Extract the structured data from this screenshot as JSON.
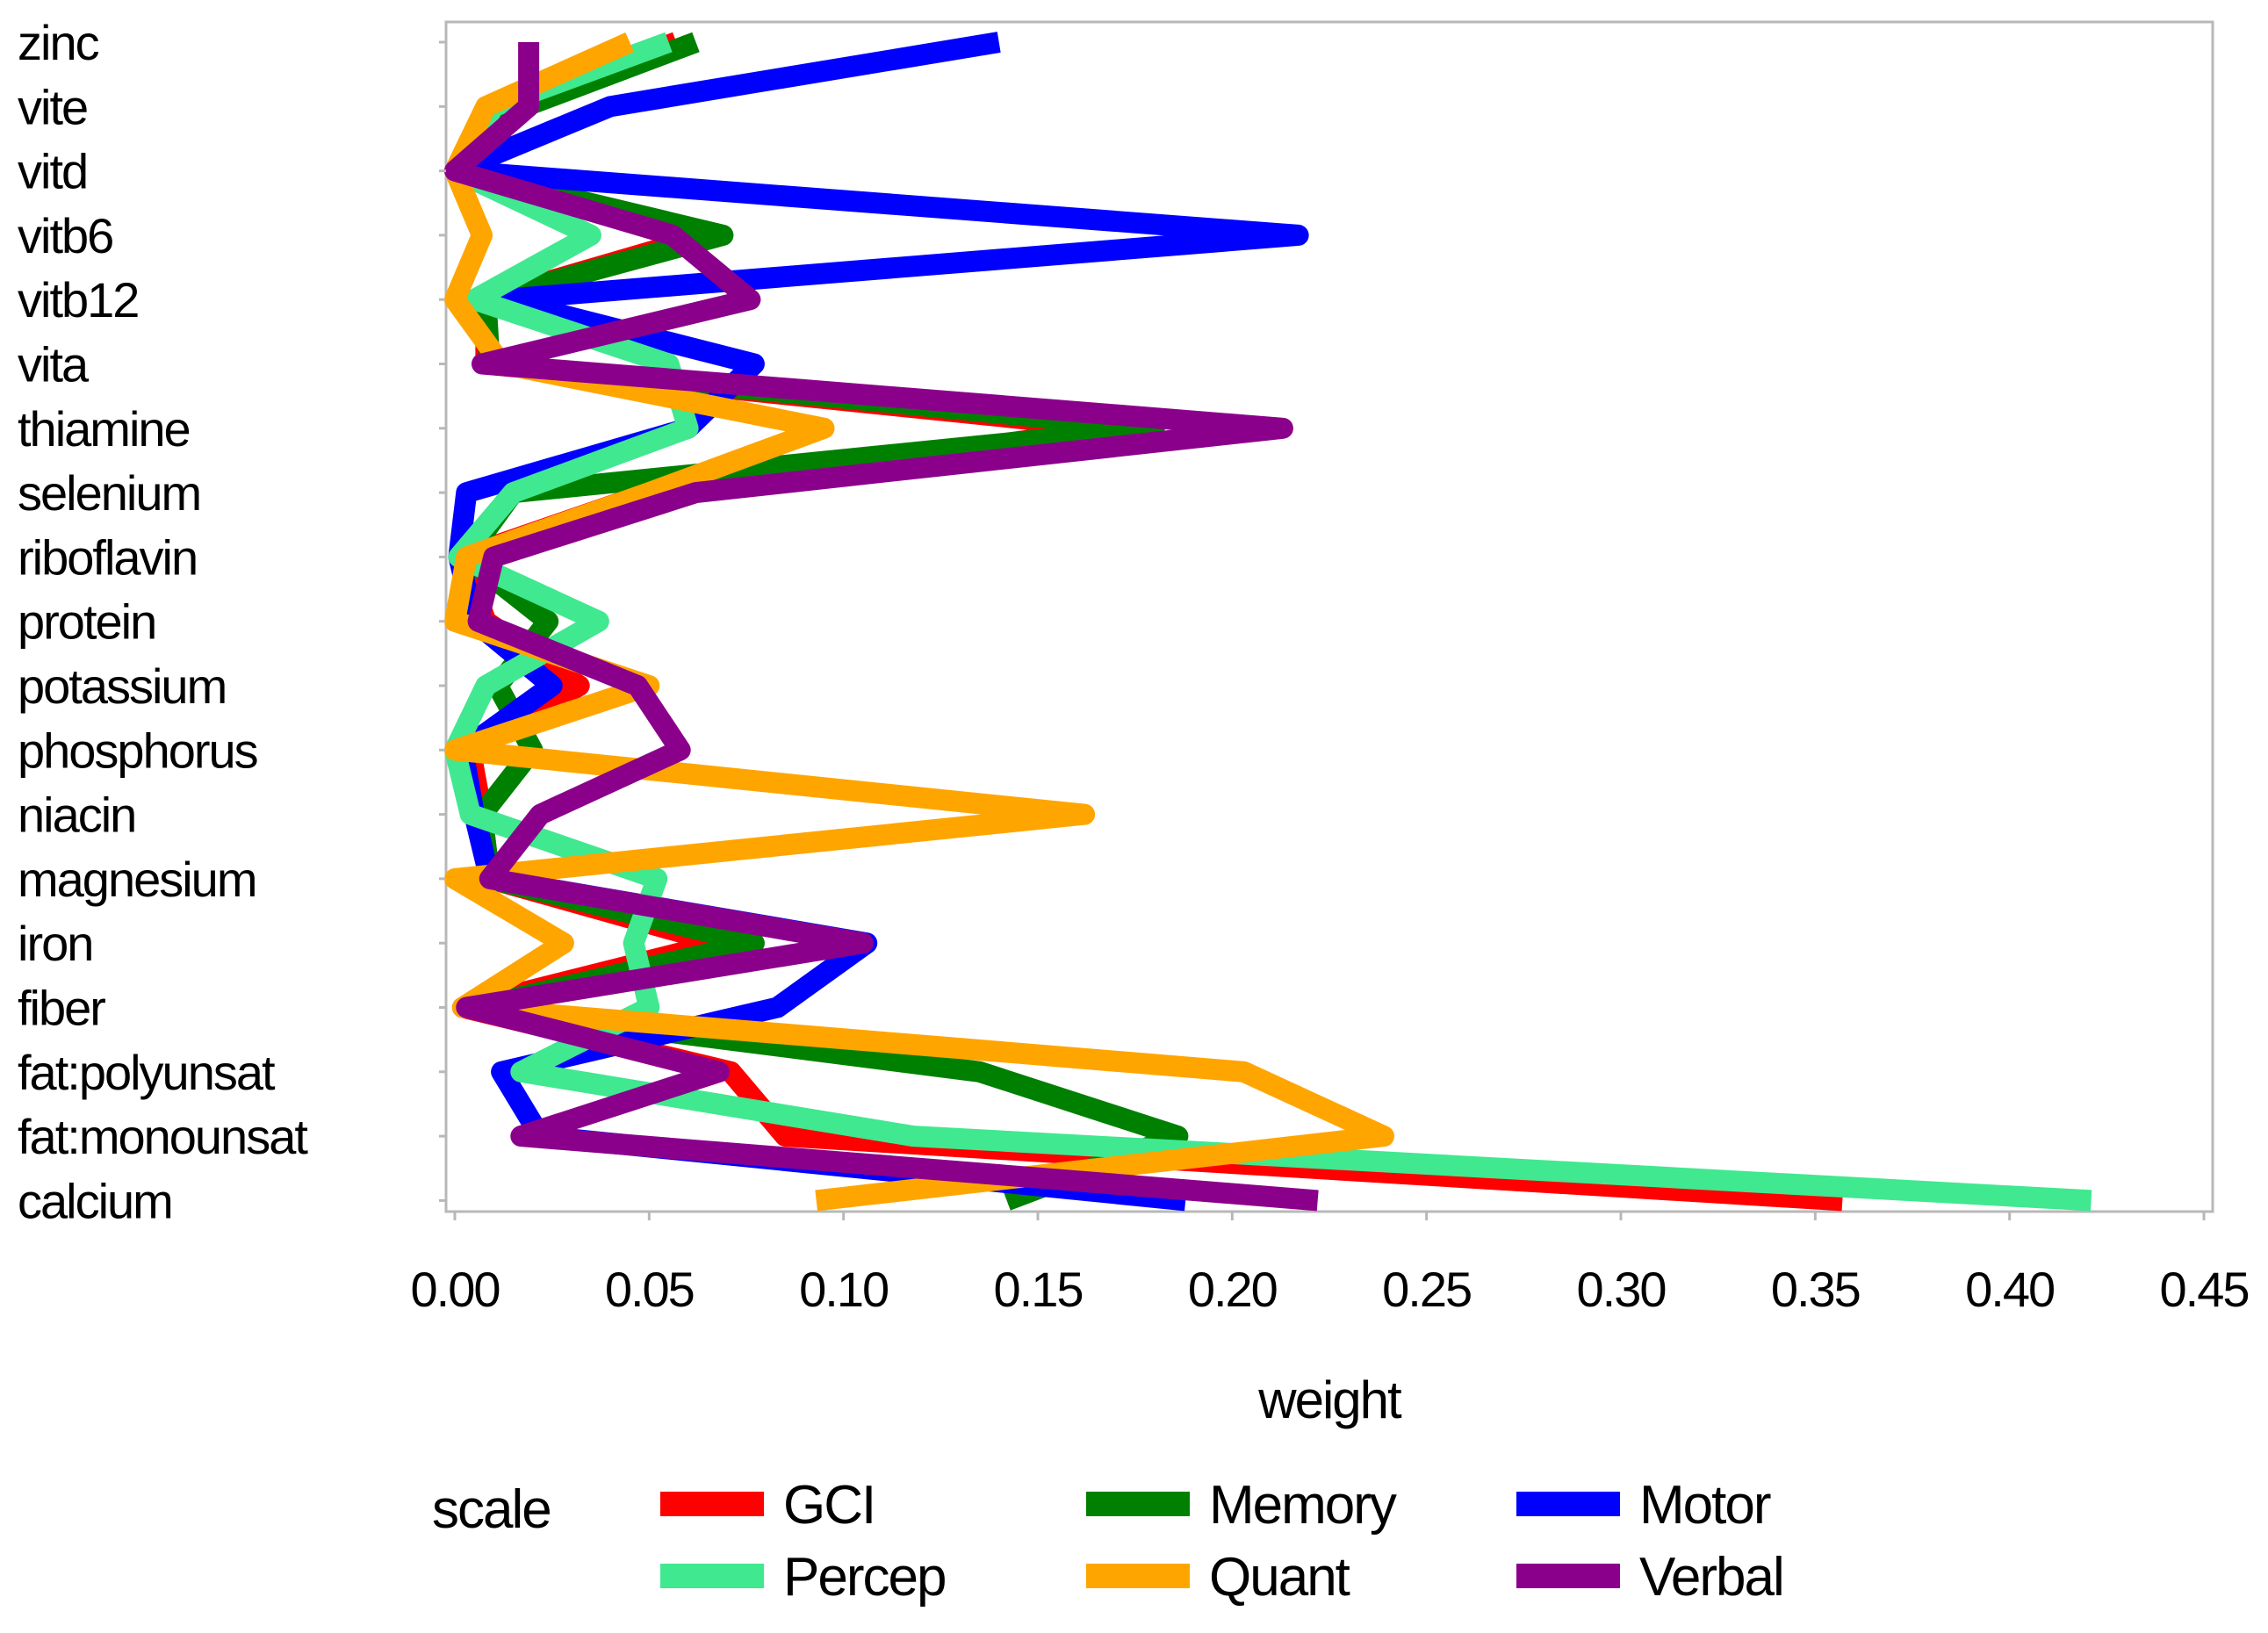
{
  "chart_data": {
    "type": "line",
    "orientation": "horizontal",
    "xlabel": "weight",
    "ylabel": "",
    "xlim": [
      0,
      0.45
    ],
    "xticks": [
      "0.00",
      "0.05",
      "0.10",
      "0.15",
      "0.20",
      "0.25",
      "0.30",
      "0.35",
      "0.40",
      "0.45"
    ],
    "xtick_values": [
      0,
      0.05,
      0.1,
      0.15,
      0.2,
      0.25,
      0.3,
      0.35,
      0.4,
      0.45
    ],
    "categories": [
      "zinc",
      "vite",
      "vitd",
      "vitb6",
      "vitb12",
      "vita",
      "thiamine",
      "selenium",
      "riboflavin",
      "protein",
      "potassium",
      "phosphorus",
      "niacin",
      "magnesium",
      "iron",
      "fiber",
      "fat:polyunsat",
      "fat:monounsat",
      "calcium"
    ],
    "grid": false,
    "legend": {
      "title": "scale",
      "placement": "bottom"
    },
    "series": [
      {
        "name": "GCI",
        "color": "#ff0000",
        "values": [
          0.057,
          0.013,
          0.0,
          0.065,
          0.008,
          0.008,
          0.17,
          0.05,
          0.002,
          0.008,
          0.032,
          0.004,
          0.007,
          0.009,
          0.068,
          0.002,
          0.071,
          0.085,
          0.357
        ]
      },
      {
        "name": "Memory",
        "color": "#008000",
        "values": [
          0.062,
          0.018,
          0.0,
          0.069,
          0.008,
          0.009,
          0.18,
          0.015,
          0.003,
          0.024,
          0.011,
          0.02,
          0.007,
          0.009,
          0.077,
          0.005,
          0.135,
          0.186,
          0.142
        ]
      },
      {
        "name": "Motor",
        "color": "#0000ff",
        "values": [
          0.14,
          0.04,
          0.0,
          0.217,
          0.012,
          0.077,
          0.06,
          0.003,
          0.001,
          0.005,
          0.025,
          0.002,
          0.005,
          0.009,
          0.106,
          0.083,
          0.012,
          0.022,
          0.188
        ]
      },
      {
        "name": "Percep",
        "color": "#40e890",
        "values": [
          0.055,
          0.01,
          0.0,
          0.035,
          0.005,
          0.055,
          0.06,
          0.015,
          0.001,
          0.037,
          0.008,
          0.0,
          0.004,
          0.052,
          0.046,
          0.05,
          0.017,
          0.118,
          0.421
        ]
      },
      {
        "name": "Quant",
        "color": "#ffa500",
        "values": [
          0.045,
          0.008,
          0.0,
          0.007,
          0.0,
          0.012,
          0.095,
          0.05,
          0.003,
          0.0,
          0.05,
          0.0,
          0.162,
          0.0,
          0.028,
          0.002,
          0.203,
          0.239,
          0.093
        ]
      },
      {
        "name": "Verbal",
        "color": "#8b008b",
        "values": [
          0.019,
          0.019,
          0.0,
          0.056,
          0.076,
          0.007,
          0.213,
          0.062,
          0.01,
          0.006,
          0.047,
          0.058,
          0.022,
          0.009,
          0.105,
          0.003,
          0.068,
          0.017,
          0.222
        ]
      }
    ]
  }
}
